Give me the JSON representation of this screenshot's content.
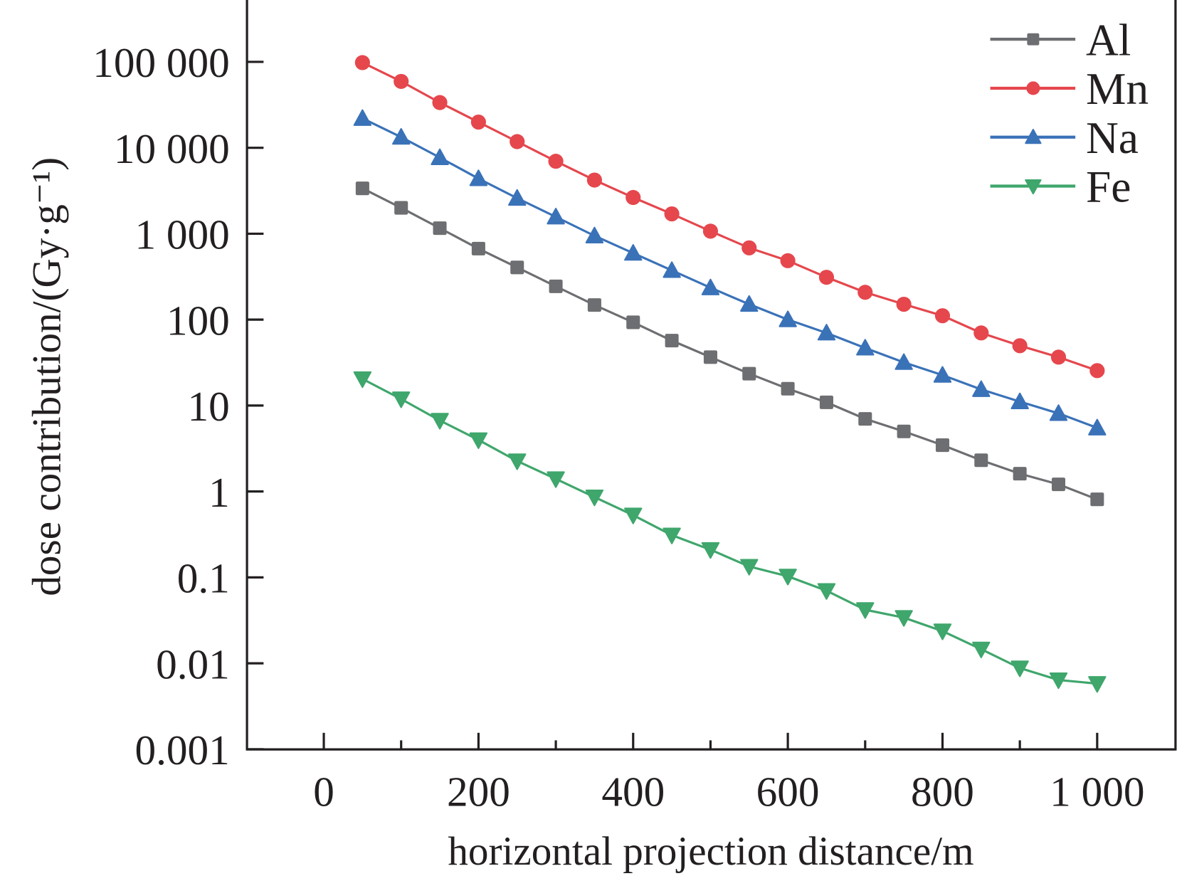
{
  "chart_data": {
    "type": "line",
    "title": "",
    "xlabel": "horizontal projection distance/m",
    "ylabel": "dose contribution/(Gy·g⁻¹)",
    "yscale": "log",
    "xlim": [
      -100,
      1100
    ],
    "ylim": [
      0.001,
      500000
    ],
    "x_ticks": [
      0,
      200,
      400,
      600,
      800,
      1000
    ],
    "x_tick_labels": [
      "0",
      "200",
      "400",
      "600",
      "800",
      "1 000"
    ],
    "y_ticks": [
      0.001,
      0.01,
      0.1,
      1,
      10,
      100,
      1000,
      10000,
      100000
    ],
    "y_tick_labels": [
      "0.001",
      "0.01",
      "0.1",
      "1",
      "10",
      "100",
      "1 000",
      "10 000",
      "100 000"
    ],
    "grid": false,
    "legend_position": "top-right",
    "x": [
      50,
      100,
      150,
      200,
      250,
      300,
      350,
      400,
      450,
      500,
      550,
      600,
      650,
      700,
      750,
      800,
      850,
      900,
      950,
      1000
    ],
    "series": [
      {
        "name": "Al",
        "color": "#6d6e71",
        "marker": "square",
        "values": [
          3370,
          2000,
          1160,
          670,
          405,
          244,
          148,
          93,
          57,
          36.6,
          23.5,
          15.7,
          10.9,
          7.0,
          5.0,
          3.46,
          2.31,
          1.61,
          1.21,
          0.81
        ]
      },
      {
        "name": "Mn",
        "color": "#e5474d",
        "marker": "circle",
        "values": [
          98000,
          59200,
          33600,
          19900,
          11800,
          6970,
          4210,
          2640,
          1700,
          1070,
          684,
          485,
          311,
          208,
          151,
          111,
          70,
          49.7,
          36.6,
          25.5
        ]
      },
      {
        "name": "Na",
        "color": "#3a72b8",
        "marker": "triangle-up",
        "values": [
          22000,
          13300,
          7700,
          4380,
          2590,
          1570,
          945,
          594,
          374,
          235,
          151,
          100,
          70,
          46.8,
          31.8,
          22.6,
          15.4,
          11.1,
          8.1,
          5.5
        ]
      },
      {
        "name": "Fe",
        "color": "#3fa66c",
        "marker": "triangle-down",
        "values": [
          20.4,
          11.9,
          6.7,
          3.98,
          2.26,
          1.4,
          0.86,
          0.53,
          0.31,
          0.21,
          0.134,
          0.103,
          0.07,
          0.042,
          0.034,
          0.0237,
          0.0146,
          0.0088,
          0.0064,
          0.0058
        ]
      }
    ]
  }
}
